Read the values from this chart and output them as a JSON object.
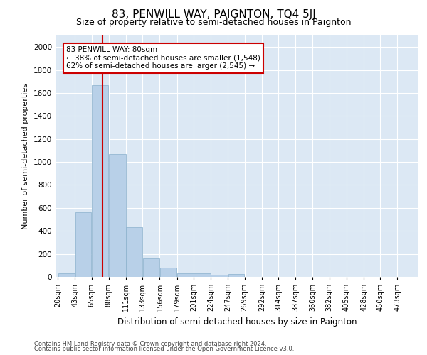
{
  "title": "83, PENWILL WAY, PAIGNTON, TQ4 5JJ",
  "subtitle": "Size of property relative to semi-detached houses in Paignton",
  "xlabel": "Distribution of semi-detached houses by size in Paignton",
  "ylabel": "Number of semi-detached properties",
  "footnote1": "Contains HM Land Registry data © Crown copyright and database right 2024.",
  "footnote2": "Contains public sector information licensed under the Open Government Licence v3.0.",
  "property_label": "83 PENWILL WAY: 80sqm",
  "smaller_pct": 38,
  "smaller_n": "1,548",
  "larger_pct": 62,
  "larger_n": "2,545",
  "bin_labels": [
    "20sqm",
    "43sqm",
    "65sqm",
    "88sqm",
    "111sqm",
    "133sqm",
    "156sqm",
    "179sqm",
    "201sqm",
    "224sqm",
    "247sqm",
    "269sqm",
    "292sqm",
    "314sqm",
    "337sqm",
    "360sqm",
    "382sqm",
    "405sqm",
    "428sqm",
    "450sqm",
    "473sqm"
  ],
  "bin_edges": [
    20,
    43,
    65,
    88,
    111,
    133,
    156,
    179,
    201,
    224,
    247,
    269,
    292,
    314,
    337,
    360,
    382,
    405,
    428,
    450,
    473,
    496
  ],
  "bar_heights": [
    30,
    560,
    1670,
    1070,
    430,
    160,
    80,
    30,
    30,
    20,
    25,
    0,
    0,
    0,
    0,
    0,
    0,
    0,
    0,
    0,
    0
  ],
  "bar_color": "#b8d0e8",
  "bar_edge_color": "#8ab0cc",
  "vline_color": "#cc0000",
  "vline_x": 80,
  "ylim": [
    0,
    2100
  ],
  "yticks": [
    0,
    200,
    400,
    600,
    800,
    1000,
    1200,
    1400,
    1600,
    1800,
    2000
  ],
  "bg_color": "#dce8f4",
  "box_color": "#cc0000",
  "title_fontsize": 11,
  "subtitle_fontsize": 9
}
